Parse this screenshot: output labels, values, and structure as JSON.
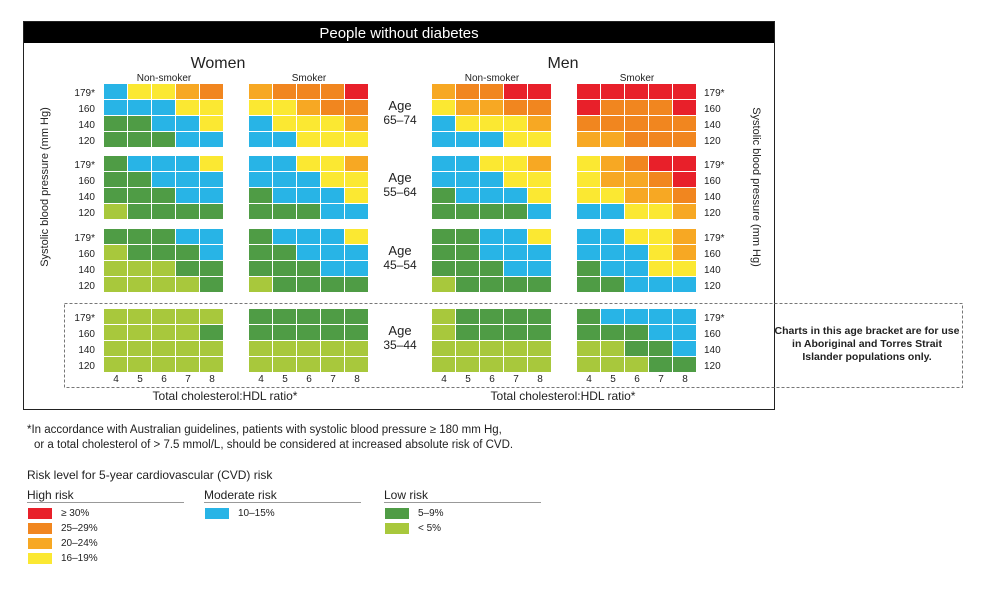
{
  "header": {
    "title": "People without diabetes",
    "women": "Women",
    "men": "Men",
    "non_smoker": "Non-smoker",
    "smoker": "Smoker",
    "y_axis_label": "Systolic blood pressure (mm Hg)",
    "x_axis_label": "Total cholesterol:HDL ratio*"
  },
  "note": {
    "text": "Charts in this age bracket are for use in Aboriginal and Torres Strait Islander populations only."
  },
  "footnote": {
    "line1": "*In accordance with Australian guidelines, patients with systolic blood pressure ≥ 180 mm Hg,",
    "line2": "or a total cholesterol of > 7.5 mmol/L, should be considered at increased absolute risk of CVD."
  },
  "legend": {
    "title": "Risk level for 5-year cardiovascular (CVD) risk",
    "groups": [
      {
        "label": "High risk",
        "items": [
          {
            "range": "≥ 30%",
            "color": "#e8202a"
          },
          {
            "range": "25–29%",
            "color": "#f1861f"
          },
          {
            "range": "20–24%",
            "color": "#f7a823"
          },
          {
            "range": "16–19%",
            "color": "#fbe832"
          }
        ]
      },
      {
        "label": "Moderate risk",
        "items": [
          {
            "range": "10–15%",
            "color": "#28b4e6"
          }
        ]
      },
      {
        "label": "Low risk",
        "items": [
          {
            "range": "5–9%",
            "color": "#4f9c45"
          },
          {
            "range": "< 5%",
            "color": "#a8c83c"
          }
        ]
      }
    ]
  },
  "chart_data": {
    "type": "heatmap",
    "x_ticks": [
      "4",
      "5",
      "6",
      "7",
      "8"
    ],
    "y_ticks": [
      "179*",
      "160",
      "140",
      "120"
    ],
    "columns": [
      "Women Non-smoker",
      "Women Smoker",
      "Men Non-smoker",
      "Men Smoker"
    ],
    "risk_codes": {
      "R": "≥ 30%",
      "O": "25–29%",
      "A": "20–24%",
      "Y": "16–19%",
      "B": "10–15%",
      "G": "5–9%",
      "L": "< 5%"
    },
    "colors": {
      "R": "#e8202a",
      "O": "#f1861f",
      "A": "#f7a823",
      "Y": "#fbe832",
      "B": "#28b4e6",
      "G": "#4f9c45",
      "L": "#a8c83c"
    },
    "age_groups": [
      {
        "label_1": "Age",
        "label_2": "65–74",
        "panels": [
          [
            "BYYAO",
            "BBBYY",
            "GGBBY",
            "GGGBB"
          ],
          [
            "AOOOR",
            "YYAOO",
            "BYYYA",
            "BBYYY"
          ],
          [
            "AOORR",
            "YAAOO",
            "BYYYA",
            "BBBYY"
          ],
          [
            "RRRRR",
            "ROOOR",
            "OOOOO",
            "AAOOO"
          ]
        ]
      },
      {
        "label_1": "Age",
        "label_2": "55–64",
        "panels": [
          [
            "GBBBY",
            "GGBBB",
            "GGGBB",
            "LGGGG"
          ],
          [
            "BBYYA",
            "BBBYY",
            "GBBBY",
            "GGGBB"
          ],
          [
            "BBYYA",
            "BBBYY",
            "GBBBY",
            "GGGGB"
          ],
          [
            "YAORR",
            "YAAOR",
            "YYAAO",
            "BBYYA"
          ]
        ]
      },
      {
        "label_1": "Age",
        "label_2": "45–54",
        "panels": [
          [
            "GGGBB",
            "LGGGB",
            "LLLGG",
            "LLLLG"
          ],
          [
            "GBBBY",
            "GGBBB",
            "GGGBB",
            "LGGGG"
          ],
          [
            "GGBBY",
            "GGBBB",
            "GGGBB",
            "LGGGG"
          ],
          [
            "BBYYA",
            "BBBYA",
            "GBBYY",
            "GGBBB"
          ]
        ]
      },
      {
        "label_1": "Age",
        "label_2": "35–44",
        "panels": [
          [
            "LLLLL",
            "LLLLG",
            "LLLLL",
            "LLLLL"
          ],
          [
            "GGGGG",
            "GGGGG",
            "LLLLL",
            "LLLLL"
          ],
          [
            "LGGGG",
            "LGGGG",
            "LLLLL",
            "LLLLL"
          ],
          [
            "GBBBB",
            "GGGBB",
            "LLGGB",
            "LLLGG"
          ]
        ]
      }
    ]
  }
}
